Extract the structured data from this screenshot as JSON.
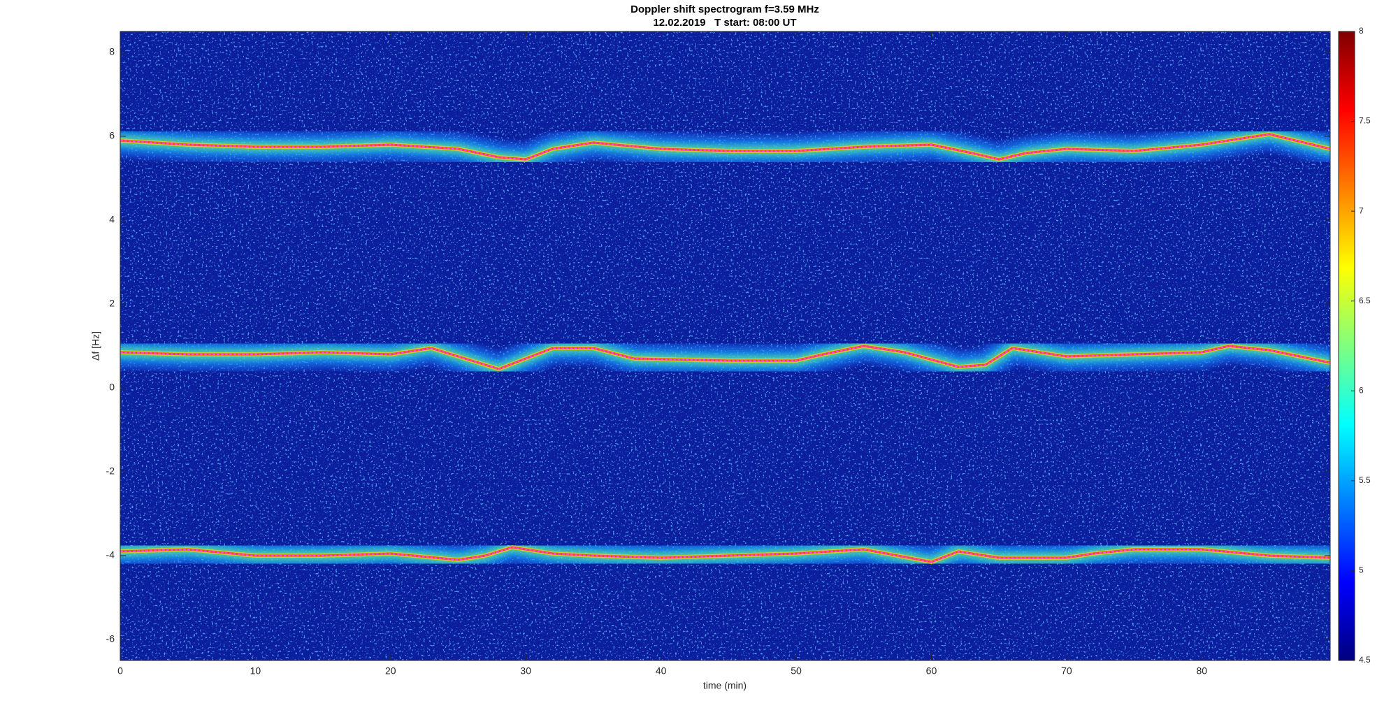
{
  "chart_data": {
    "type": "spectrogram",
    "title": "Doppler shift spectrogram f=3.59 MHz",
    "subtitle": "12.02.2019   T start: 08:00 UT",
    "xlabel": "time (min)",
    "ylabel": "Δf [Hz]",
    "xlim": [
      0,
      89.5
    ],
    "ylim": [
      -6.5,
      8.5
    ],
    "xticks": [
      0,
      10,
      20,
      30,
      40,
      50,
      60,
      70,
      80
    ],
    "yticks": [
      -6,
      -4,
      -2,
      0,
      2,
      4,
      6,
      8
    ],
    "series": [
      {
        "color": "#ff40ff",
        "x": [
          0,
          5,
          10,
          15,
          20,
          25,
          28,
          30,
          32,
          35,
          40,
          45,
          50,
          55,
          60,
          63,
          65,
          67,
          70,
          75,
          80,
          85,
          89.5
        ],
        "values": [
          5.9,
          5.8,
          5.75,
          5.75,
          5.8,
          5.7,
          5.5,
          5.45,
          5.7,
          5.85,
          5.7,
          5.65,
          5.65,
          5.75,
          5.8,
          5.6,
          5.45,
          5.6,
          5.7,
          5.65,
          5.8,
          6.05,
          5.7
        ]
      },
      {
        "color": "#ff40ff",
        "x": [
          0,
          5,
          10,
          15,
          20,
          23,
          25,
          28,
          30,
          32,
          35,
          38,
          45,
          50,
          52,
          55,
          58,
          62,
          64,
          66,
          70,
          75,
          80,
          82,
          85,
          89.5
        ],
        "values": [
          0.85,
          0.8,
          0.8,
          0.85,
          0.8,
          0.95,
          0.75,
          0.45,
          0.7,
          0.95,
          0.95,
          0.7,
          0.65,
          0.65,
          0.8,
          1.0,
          0.85,
          0.5,
          0.55,
          0.95,
          0.75,
          0.8,
          0.85,
          1.0,
          0.9,
          0.6
        ]
      },
      {
        "color": "#ff40ff",
        "x": [
          0,
          5,
          10,
          15,
          20,
          25,
          27,
          29,
          32,
          35,
          40,
          45,
          50,
          55,
          60,
          62,
          65,
          70,
          72,
          75,
          80,
          85,
          89.5
        ],
        "values": [
          -3.9,
          -3.85,
          -4.0,
          -4.0,
          -3.95,
          -4.1,
          -4.0,
          -3.8,
          -3.95,
          -4.0,
          -4.05,
          -4.0,
          -3.95,
          -3.85,
          -4.15,
          -3.9,
          -4.05,
          -4.05,
          -3.95,
          -3.85,
          -3.85,
          -4.0,
          -4.05
        ]
      }
    ],
    "colorbar": {
      "colormap": "jet",
      "clim": [
        4.5,
        8
      ],
      "ticks": [
        4.5,
        5,
        5.5,
        6,
        6.5,
        7,
        7.5,
        8
      ]
    }
  }
}
